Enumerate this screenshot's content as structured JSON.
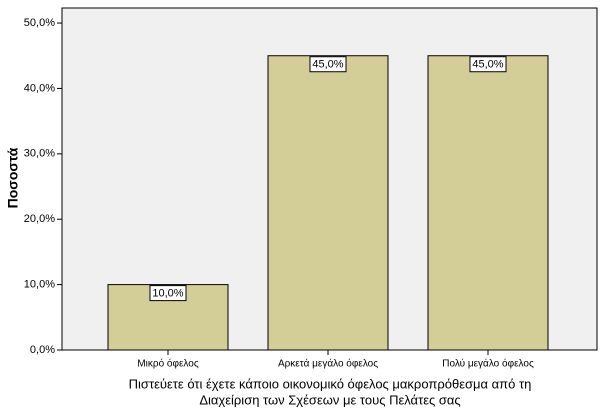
{
  "chart_data": {
    "type": "bar",
    "x_label": [
      "Πιστεύετε ότι έχετε κάποιο οικονομικό όφελος μακροπρόθεσμα από τη",
      "Διαχείριση των Σχέσεων με τους Πελάτες σας"
    ],
    "y_label": "Ποσοστά",
    "categories": [
      "Μικρό όφελος",
      "Αρκετά μεγάλο όφελος",
      "Πολύ μεγάλο όφελος"
    ],
    "values": [
      10,
      45,
      45
    ],
    "value_labels": [
      "10,0%",
      "45,0%",
      "45,0%"
    ],
    "color": "#d3ce98",
    "ylim": [
      0,
      52.3
    ],
    "yticks": [
      {
        "value": 0,
        "label": "0,0%"
      },
      {
        "value": 10,
        "label": "10,0%"
      },
      {
        "value": 20,
        "label": "20,0%"
      },
      {
        "value": 30,
        "label": "30,0%"
      },
      {
        "value": 40,
        "label": "40,0%"
      },
      {
        "value": 50,
        "label": "50,0%"
      }
    ]
  }
}
